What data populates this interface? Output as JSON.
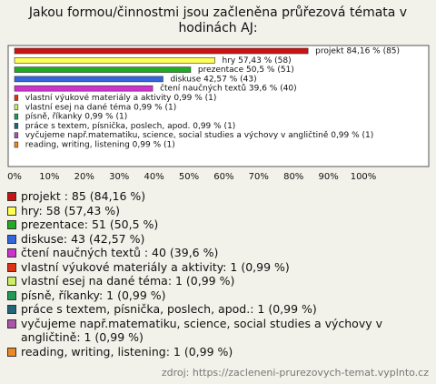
{
  "chart_data": {
    "type": "hbar",
    "title": "Jakou formou/činnostmi jsou začleněna průřezová témata v hodinách AJ:",
    "categories": [
      "projekt",
      "hry",
      "prezentace",
      "diskuse",
      "čtení naučných textů",
      "vlastní výukové materiály a aktivity",
      "vlastní esej na dané téma",
      "písně, říkanky",
      "práce s textem, písnička, poslech, apod.",
      "vyčujeme např.matematiku, science, social studies a výchovy v angličtině",
      "reading, writing, listening"
    ],
    "values": [
      84.16,
      57.43,
      50.5,
      42.57,
      39.6,
      0.99,
      0.99,
      0.99,
      0.99,
      0.99,
      0.99
    ],
    "value_labels": [
      "projekt  84,16 % (85)",
      "hry 57,43 % (58)",
      "prezentace 50,5 % (51)",
      "diskuse 42,57 % (43)",
      "čtení naučných textů  39,6 % (40)",
      "vlastní výukové materiály a aktivity 0,99 % (1)",
      "vlastní esej na dané téma 0,99 % (1)",
      "písně, říkanky 0,99 % (1)",
      "práce s textem, písnička, poslech, apod. 0,99 % (1)",
      "vyčujeme např.matematiku, science, social studies a výchovy v angličtině 0,99 % (1)",
      "reading, writing, listening 0,99 % (1)"
    ],
    "legend": [
      "projekt : 85 (84,16 %)",
      "hry: 58 (57,43 %)",
      "prezentace: 51 (50,5 %)",
      "diskuse: 43 (42,57 %)",
      "čtení naučných textů : 40 (39,6 %)",
      "vlastní výukové materiály a aktivity: 1 (0,99 %)",
      "vlastní esej na dané téma: 1 (0,99 %)",
      "písně, říkanky: 1 (0,99 %)",
      "práce s textem, písnička, poslech, apod.: 1 (0,99 %)",
      "vyčujeme např.matematiku, science, social studies a výchovy v angličtině: 1 (0,99 %)",
      "reading, writing, listening: 1 (0,99 %)"
    ],
    "colors": [
      "#cc1111",
      "#ffff55",
      "#22aa22",
      "#3366dd",
      "#cc33cc",
      "#dd3311",
      "#ccee66",
      "#229955",
      "#226677",
      "#aa55aa",
      "#ee8822"
    ],
    "xlim": [
      0,
      100
    ],
    "xticks": [
      {
        "value": 0,
        "label": "0%"
      },
      {
        "value": 10,
        "label": "10%"
      },
      {
        "value": 20,
        "label": "20%"
      },
      {
        "value": 30,
        "label": "30%"
      },
      {
        "value": 40,
        "label": "40%"
      },
      {
        "value": 50,
        "label": "50%"
      },
      {
        "value": 60,
        "label": "60%"
      },
      {
        "value": 70,
        "label": "70%"
      },
      {
        "value": 80,
        "label": "80%"
      },
      {
        "value": 90,
        "label": "90%"
      },
      {
        "value": 100,
        "label": "100%"
      }
    ],
    "grid": false,
    "source": "zdroj: https://zacleneni-prurezovych-temat.vyplnto.cz"
  }
}
